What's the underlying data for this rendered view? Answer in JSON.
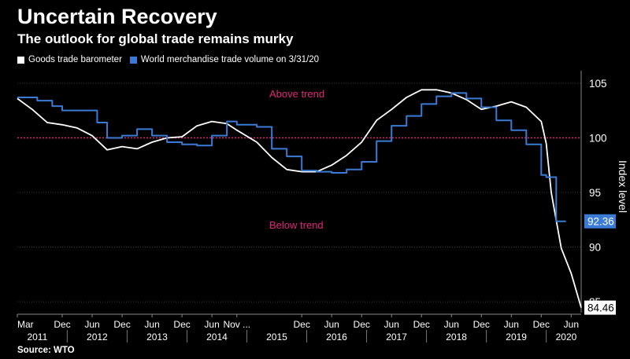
{
  "header": {
    "title": "Uncertain Recovery",
    "subtitle": "The outlook for global trade remains murky"
  },
  "legend": {
    "items": [
      {
        "label": "Goods trade barometer",
        "color": "#ffffff"
      },
      {
        "label": "World merchandise trade volume on 3/31/20",
        "color": "#3a7bd5"
      }
    ]
  },
  "source": "Source: WTO",
  "chart_data": {
    "type": "line",
    "ylabel": "Index level",
    "ylim": [
      84,
      106
    ],
    "yticks": [
      85,
      90,
      95,
      100,
      105
    ],
    "trend_value": 100,
    "annotations": {
      "above": "Above trend",
      "below": "Below trend"
    },
    "colors": {
      "barometer": "#ffffff",
      "volume": "#3a7bd5",
      "trend": "#e0267a",
      "grid": "#3a3a3a"
    },
    "end_labels": {
      "barometer": "84.46",
      "volume": "92.36"
    },
    "month_ticks": [
      {
        "label": "Mar",
        "date": "2011-03"
      },
      {
        "label": "Dec",
        "date": "2011-12"
      },
      {
        "label": "Jun",
        "date": "2012-06"
      },
      {
        "label": "Dec",
        "date": "2012-12"
      },
      {
        "label": "Jun",
        "date": "2013-06"
      },
      {
        "label": "Dec",
        "date": "2013-12"
      },
      {
        "label": "Jun",
        "date": "2014-06"
      },
      {
        "label": "Nov ...",
        "date": "2014-11"
      },
      {
        "label": "Dec",
        "date": "2015-12"
      },
      {
        "label": "Jun",
        "date": "2016-06"
      },
      {
        "label": "Dec",
        "date": "2016-12"
      },
      {
        "label": "Jun",
        "date": "2017-06"
      },
      {
        "label": "Dec",
        "date": "2017-12"
      },
      {
        "label": "Jun",
        "date": "2018-06"
      },
      {
        "label": "Dec",
        "date": "2018-12"
      },
      {
        "label": "Jun",
        "date": "2019-06"
      },
      {
        "label": "Dec",
        "date": "2019-12"
      },
      {
        "label": "Jun",
        "date": "2020-06"
      }
    ],
    "year_labels": [
      {
        "label": "2011",
        "date": "2011-07"
      },
      {
        "label": "2012",
        "date": "2012-07"
      },
      {
        "label": "2013",
        "date": "2013-07"
      },
      {
        "label": "2014",
        "date": "2014-07"
      },
      {
        "label": "2015",
        "date": "2015-07"
      },
      {
        "label": "2016",
        "date": "2016-07"
      },
      {
        "label": "2017",
        "date": "2017-07"
      },
      {
        "label": "2018",
        "date": "2018-07"
      },
      {
        "label": "2019",
        "date": "2019-07"
      },
      {
        "label": "2020",
        "date": "2020-05"
      }
    ],
    "series": [
      {
        "key": "barometer",
        "name": "Goods trade barometer",
        "points": [
          [
            "2011-03",
            103.6
          ],
          [
            "2011-06",
            102.6
          ],
          [
            "2011-09",
            101.4
          ],
          [
            "2011-12",
            101.2
          ],
          [
            "2012-03",
            100.9
          ],
          [
            "2012-06",
            100.2
          ],
          [
            "2012-09",
            98.9
          ],
          [
            "2012-12",
            99.2
          ],
          [
            "2013-03",
            99.0
          ],
          [
            "2013-06",
            99.6
          ],
          [
            "2013-09",
            100.0
          ],
          [
            "2013-12",
            100.1
          ],
          [
            "2014-03",
            101.1
          ],
          [
            "2014-06",
            101.5
          ],
          [
            "2014-09",
            101.3
          ],
          [
            "2014-11",
            100.7
          ],
          [
            "2015-03",
            99.6
          ],
          [
            "2015-06",
            98.2
          ],
          [
            "2015-09",
            97.1
          ],
          [
            "2015-12",
            96.9
          ],
          [
            "2016-03",
            96.9
          ],
          [
            "2016-06",
            97.5
          ],
          [
            "2016-09",
            98.4
          ],
          [
            "2016-12",
            99.6
          ],
          [
            "2017-03",
            101.6
          ],
          [
            "2017-06",
            102.6
          ],
          [
            "2017-09",
            103.7
          ],
          [
            "2017-12",
            104.4
          ],
          [
            "2018-03",
            104.4
          ],
          [
            "2018-06",
            104.1
          ],
          [
            "2018-09",
            103.5
          ],
          [
            "2018-12",
            102.6
          ],
          [
            "2019-03",
            102.9
          ],
          [
            "2019-06",
            103.3
          ],
          [
            "2019-09",
            102.8
          ],
          [
            "2019-12",
            101.5
          ],
          [
            "2020-01",
            99.5
          ],
          [
            "2020-02",
            95.0
          ],
          [
            "2020-04",
            89.9
          ],
          [
            "2020-06",
            87.6
          ],
          [
            "2020-08",
            84.46
          ]
        ]
      },
      {
        "key": "volume",
        "name": "World merchandise trade volume on 3/31/20",
        "points": [
          [
            "2011-03",
            103.7
          ],
          [
            "2011-07",
            103.4
          ],
          [
            "2011-10",
            102.9
          ],
          [
            "2011-12",
            102.5
          ],
          [
            "2012-03",
            102.5
          ],
          [
            "2012-07",
            101.4
          ],
          [
            "2012-09",
            100.0
          ],
          [
            "2012-12",
            100.2
          ],
          [
            "2013-03",
            100.8
          ],
          [
            "2013-06",
            100.2
          ],
          [
            "2013-09",
            99.6
          ],
          [
            "2013-12",
            99.4
          ],
          [
            "2014-03",
            99.3
          ],
          [
            "2014-06",
            100.2
          ],
          [
            "2014-09",
            101.5
          ],
          [
            "2014-11",
            101.2
          ],
          [
            "2015-03",
            101.0
          ],
          [
            "2015-06",
            99.0
          ],
          [
            "2015-09",
            98.3
          ],
          [
            "2015-12",
            97.0
          ],
          [
            "2016-03",
            96.9
          ],
          [
            "2016-06",
            96.8
          ],
          [
            "2016-09",
            97.1
          ],
          [
            "2016-12",
            97.8
          ],
          [
            "2017-03",
            99.7
          ],
          [
            "2017-06",
            101.1
          ],
          [
            "2017-09",
            102.0
          ],
          [
            "2017-12",
            103.1
          ],
          [
            "2018-03",
            103.8
          ],
          [
            "2018-06",
            104.1
          ],
          [
            "2018-09",
            103.6
          ],
          [
            "2018-12",
            102.8
          ],
          [
            "2019-03",
            101.6
          ],
          [
            "2019-06",
            100.7
          ],
          [
            "2019-09",
            99.4
          ],
          [
            "2019-12",
            96.6
          ],
          [
            "2020-01",
            96.4
          ],
          [
            "2020-03",
            92.36
          ],
          [
            "2020-04",
            92.36
          ]
        ]
      }
    ]
  }
}
